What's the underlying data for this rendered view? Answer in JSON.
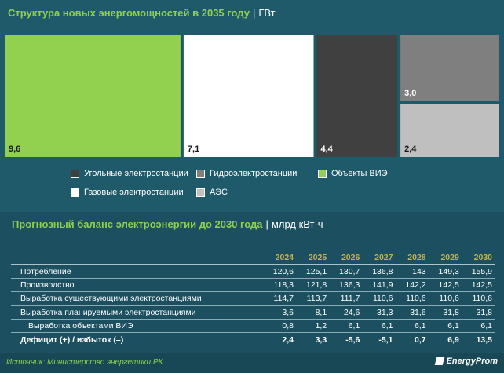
{
  "treemap": {
    "title": "Структура новых энергомощностей в 2035 году",
    "unit": "ГВт"
  },
  "chart_data": [
    {
      "type": "treemap",
      "title": "Структура новых энергомощностей в 2035 году",
      "unit": "ГВт",
      "series": [
        {
          "name": "Объекты ВИЭ",
          "value": 9.6,
          "label": "9,6",
          "color": "#92d050"
        },
        {
          "name": "Газовые электростанции",
          "value": 7.1,
          "label": "7,1",
          "color": "#ffffff"
        },
        {
          "name": "Угольные электростанции",
          "value": 4.4,
          "label": "4,4",
          "color": "#404040"
        },
        {
          "name": "Гидроэлектростанции",
          "value": 3.0,
          "label": "3,0",
          "color": "#7f7f7f"
        },
        {
          "name": "АЭС",
          "value": 2.4,
          "label": "2,4",
          "color": "#bfbfbf"
        }
      ]
    },
    {
      "type": "table",
      "title": "Прогнозный баланс электроэнергии до 2030 года",
      "unit": "млрд кВт·ч",
      "columns": [
        "2024",
        "2025",
        "2026",
        "2027",
        "2028",
        "2029",
        "2030"
      ],
      "rows": [
        {
          "label": "Потребление",
          "values": [
            "120,6",
            "125,1",
            "130,7",
            "136,8",
            "143",
            "149,3",
            "155,9"
          ]
        },
        {
          "label": "Производство",
          "values": [
            "118,3",
            "121,8",
            "136,3",
            "141,9",
            "142,2",
            "142,5",
            "142,5"
          ]
        },
        {
          "label": "Выработка существующими электростанциями",
          "values": [
            "114,7",
            "113,7",
            "111,7",
            "110,6",
            "110,6",
            "110,6",
            "110,6"
          ]
        },
        {
          "label": "Выработка планируемыми электростанциями",
          "values": [
            "3,6",
            "8,1",
            "24,6",
            "31,3",
            "31,6",
            "31,8",
            "31,8"
          ]
        },
        {
          "label": "Выработка объектами ВИЭ",
          "values": [
            "0,8",
            "1,2",
            "6,1",
            "6,1",
            "6,1",
            "6,1",
            "6,1"
          ],
          "indent": true
        },
        {
          "label": "Дефицит (+) / избыток (–)",
          "values": [
            "2,4",
            "3,3",
            "-5,6",
            "-5,1",
            "0,7",
            "6,9",
            "13,5"
          ],
          "bold": true
        }
      ]
    }
  ],
  "legend": [
    {
      "label": "Угольные электростанции",
      "color": "#404040"
    },
    {
      "label": "Гидроэлектростанции",
      "color": "#7f7f7f"
    },
    {
      "label": "Объекты ВИЭ",
      "color": "#92d050"
    },
    {
      "label": "Газовые электростанции",
      "color": "#ffffff"
    },
    {
      "label": "АЭС",
      "color": "#bfbfbf"
    }
  ],
  "balance": {
    "title": "Прогнозный баланс электроэнергии до 2030 года",
    "unit": "млрд кВт·ч"
  },
  "footer": {
    "source": "Источник: Министерство энергетики РК",
    "logo": "EnergyProm"
  },
  "colors": {
    "background": "#1e5a6a",
    "accent": "#8fd14f",
    "year_header": "#c7b24a"
  }
}
